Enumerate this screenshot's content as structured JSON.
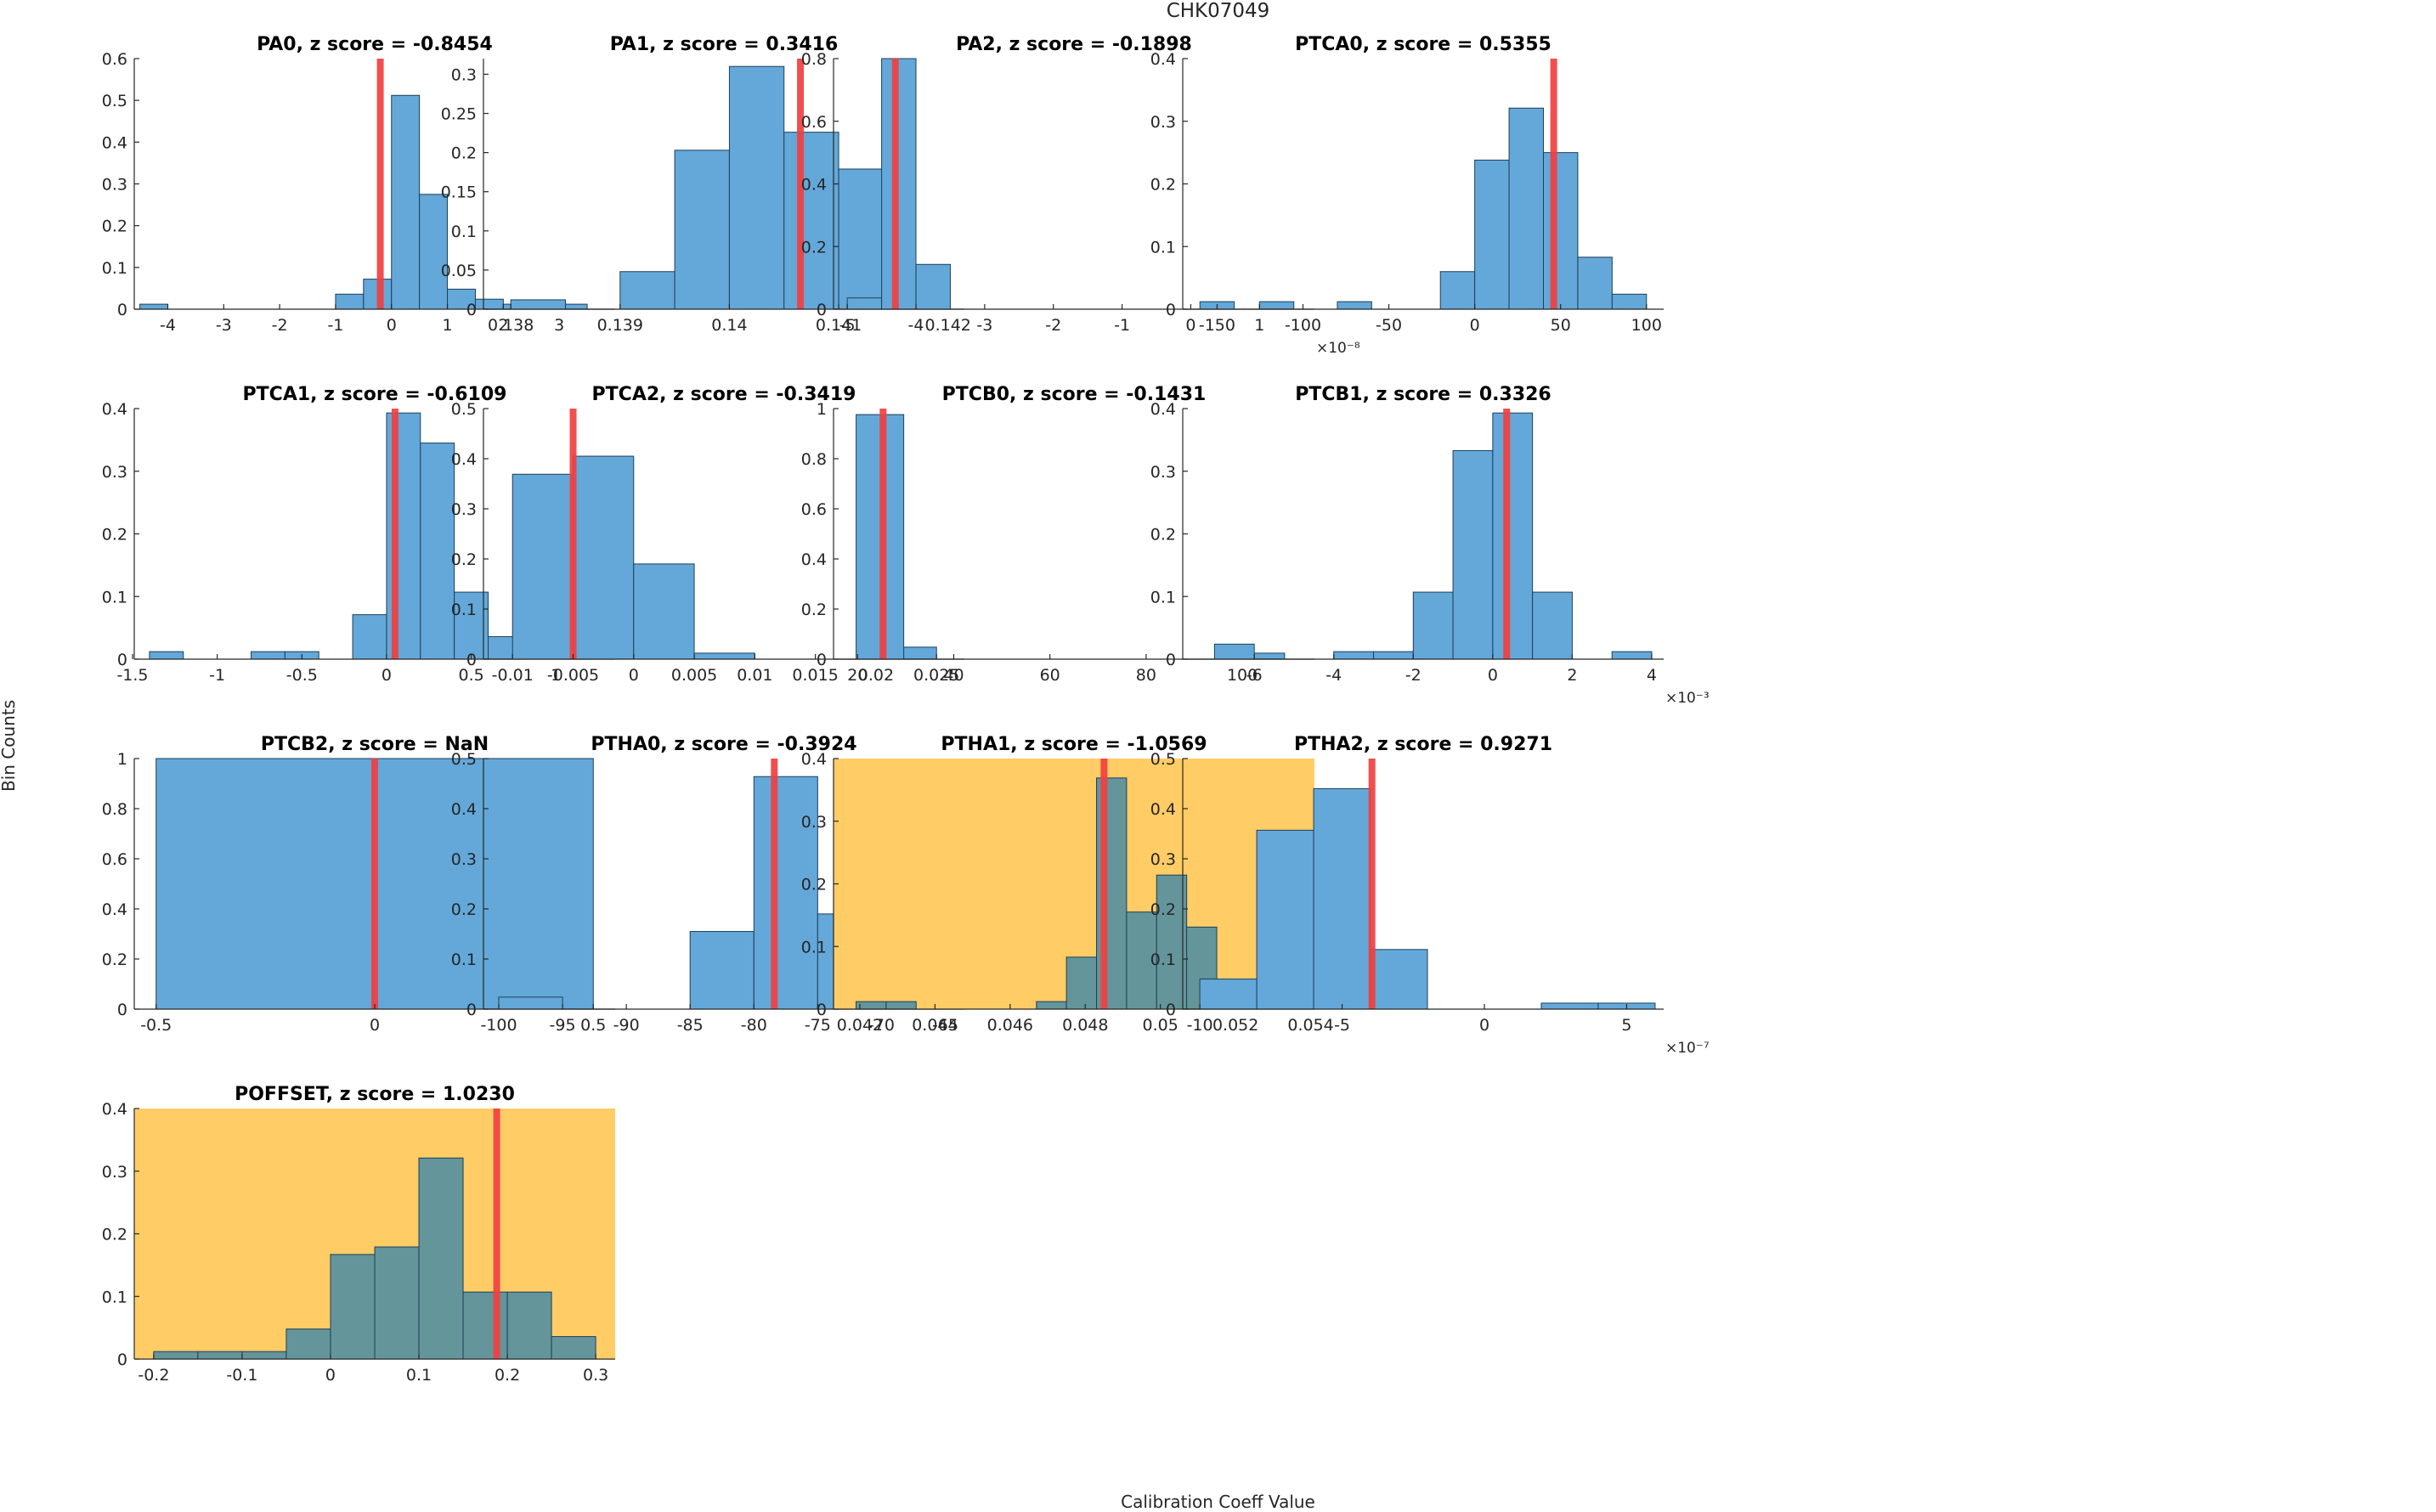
{
  "figure": {
    "title": "CHK07049",
    "xlabel": "Calibration Coeff Value",
    "ylabel": "Bin Counts"
  },
  "colors": {
    "bar": "#63a8d9",
    "bar_edge": "#1f3f57",
    "highlight_bg": "#ffcc66",
    "highlight_bar": "#63959a",
    "marker": "#f04040",
    "axis": "#262626"
  },
  "chart_data": [
    {
      "type": "bar",
      "title": "PA0, z score = -0.8454",
      "highlight": false,
      "xlim": [
        -4.6,
        4.0
      ],
      "ylim": [
        0,
        0.6
      ],
      "xticks": [
        -4,
        -3,
        -2,
        -1,
        0,
        1,
        2,
        3
      ],
      "xtick_labels": [
        "-4",
        "-3",
        "-2",
        "-1",
        "0",
        "1",
        "2",
        "3"
      ],
      "yticks": [
        0,
        0.1,
        0.2,
        0.3,
        0.4,
        0.5,
        0.6
      ],
      "ytick_labels": [
        "0",
        "0.1",
        "0.2",
        "0.3",
        "0.4",
        "0.5",
        "0.6"
      ],
      "bin_edges": [
        -4.5,
        -4.0,
        -3.5,
        -3.0,
        -2.5,
        -2.0,
        -1.5,
        -1.0,
        -0.5,
        0.0,
        0.5,
        1.0,
        1.5,
        2.0,
        2.5,
        3.0,
        3.5
      ],
      "values": [
        0.012,
        0,
        0,
        0,
        0,
        0,
        0,
        0.036,
        0.072,
        0.512,
        0.275,
        0.048,
        0.024,
        0.012,
        0,
        0.012
      ],
      "marker": -0.2,
      "exponent": ""
    },
    {
      "type": "bar",
      "title": "PA1, z score = 0.3416",
      "highlight": false,
      "xlim": [
        0.13775,
        0.14215
      ],
      "ylim": [
        0,
        0.32
      ],
      "xticks": [
        0.138,
        0.139,
        0.14,
        0.141,
        0.142
      ],
      "xtick_labels": [
        "0.138",
        "0.139",
        "0.14",
        "0.141",
        "0.142"
      ],
      "yticks": [
        0,
        0.05,
        0.1,
        0.15,
        0.2,
        0.25,
        0.3
      ],
      "ytick_labels": [
        "0",
        "0.05",
        "0.1",
        "0.15",
        "0.2",
        "0.25",
        "0.3"
      ],
      "bin_edges": [
        0.138,
        0.1385,
        0.139,
        0.1395,
        0.14,
        0.1405,
        0.141,
        0.1415,
        0.142
      ],
      "values": [
        0.012,
        0,
        0.048,
        0.203,
        0.31,
        0.226,
        0.179,
        0.024
      ],
      "marker": 0.14065,
      "exponent": ""
    },
    {
      "type": "bar",
      "title": "PA2, z score = -0.1898",
      "highlight": false,
      "xlim": [
        -5.2,
        1.8
      ],
      "ylim": [
        0,
        0.8
      ],
      "xticks": [
        -5,
        -4,
        -3,
        -2,
        -1,
        0,
        1
      ],
      "xtick_labels": [
        "-5",
        "-4",
        "-3",
        "-2",
        "-1",
        "0",
        "1"
      ],
      "yticks": [
        0,
        0.2,
        0.4,
        0.6,
        0.8
      ],
      "ytick_labels": [
        "0",
        "0.2",
        "0.4",
        "0.6",
        "0.8"
      ],
      "bin_edges": [
        -5.0,
        -4.5,
        -4.0,
        -3.5,
        -3.0,
        -2.5,
        -2.0,
        -1.5,
        -1.0,
        -0.5,
        0.0,
        0.5,
        1.0,
        1.5
      ],
      "values": [
        0.036,
        0.8,
        0.143,
        0,
        0,
        0,
        0,
        0,
        0,
        0,
        0,
        0,
        0.024
      ],
      "marker": -4.3,
      "exponent": "×10⁻⁸"
    },
    {
      "type": "bar",
      "title": "PTCA0, z score = 0.5355",
      "highlight": false,
      "xlim": [
        -170,
        110
      ],
      "ylim": [
        0,
        0.4
      ],
      "xticks": [
        -150,
        -100,
        -50,
        0,
        50,
        100
      ],
      "xtick_labels": [
        "-150",
        "-100",
        "-50",
        "0",
        "50",
        "100"
      ],
      "yticks": [
        0,
        0.1,
        0.2,
        0.3,
        0.4
      ],
      "ytick_labels": [
        "0",
        "0.1",
        "0.2",
        "0.3",
        "0.4"
      ],
      "bin_edges": [
        -160,
        -140,
        -120,
        -100,
        -80,
        -60,
        -40,
        -20,
        0,
        20,
        40,
        60,
        80,
        100
      ],
      "values": [
        0.012,
        0,
        0,
        0,
        0.012,
        0,
        0,
        0.06,
        0.238,
        0.321,
        0.25,
        0.083,
        0.024
      ],
      "marker": 46,
      "exponent": ""
    },
    {
      "type": "bar",
      "title": "PTCA1, z score = -0.6109",
      "highlight": false,
      "xlim": [
        -1.49,
        1.35
      ],
      "ylim": [
        0,
        0.4
      ],
      "xticks": [
        -1.5,
        -1,
        -0.5,
        0,
        0.5,
        1
      ],
      "xtick_labels": [
        "-1.5",
        "-1",
        "-0.5",
        "0",
        "0.5",
        "1"
      ],
      "yticks": [
        0,
        0.1,
        0.2,
        0.3,
        0.4
      ],
      "ytick_labels": [
        "0",
        "0.1",
        "0.2",
        "0.3",
        "0.4"
      ],
      "bin_edges": [
        -1.4,
        -1.2,
        -1.0,
        -0.8,
        -0.6,
        -0.4,
        -0.2,
        0.0,
        0.2,
        0.4,
        0.6,
        0.8,
        1.0,
        1.2
      ],
      "values": [
        0.012,
        0,
        0,
        0.012,
        0.012,
        0,
        0.071,
        0.393,
        0.345,
        0.107,
        0.036,
        0,
        0.012
      ],
      "marker": 0.05,
      "exponent": ""
    },
    {
      "type": "bar",
      "title": "PTCA2, z score = -0.3419",
      "highlight": false,
      "xlim": [
        -0.0124,
        0.0273
      ],
      "ylim": [
        0,
        0.5
      ],
      "xticks": [
        -0.01,
        -0.005,
        0,
        0.005,
        0.01,
        0.015,
        0.02,
        0.025
      ],
      "xtick_labels": [
        "-0.01",
        "-0.005",
        "0",
        "0.005",
        "0.01",
        "0.015",
        "0.02",
        "0.025"
      ],
      "yticks": [
        0,
        0.1,
        0.2,
        0.3,
        0.4,
        0.5
      ],
      "ytick_labels": [
        "0",
        "0.1",
        "0.2",
        "0.3",
        "0.4",
        "0.5"
      ],
      "bin_edges": [
        -0.01,
        -0.005,
        0.0,
        0.005,
        0.01,
        0.015,
        0.02,
        0.025
      ],
      "values": [
        0.369,
        0.405,
        0.19,
        0.012,
        0,
        0,
        0.024
      ],
      "marker": -0.005,
      "exponent": ""
    },
    {
      "type": "bar",
      "title": "PTCB0, z score = -0.1431",
      "highlight": false,
      "xlim": [
        15,
        115
      ],
      "ylim": [
        0,
        1
      ],
      "xticks": [
        20,
        40,
        60,
        80,
        100
      ],
      "xtick_labels": [
        "20",
        "40",
        "60",
        "80",
        "100"
      ],
      "yticks": [
        0,
        0.2,
        0.4,
        0.6,
        0.8,
        1
      ],
      "ytick_labels": [
        "0",
        "0.2",
        "0.4",
        "0.6",
        "0.8",
        "1"
      ],
      "bin_edges": [
        19.7,
        29.6,
        39.5,
        49.4,
        59.3,
        69.2,
        79.1,
        89.0,
        98.9,
        108.8
      ],
      "values": [
        0.976,
        0,
        0,
        0,
        0,
        0,
        0,
        0,
        0.024
      ],
      "marker": 25.3,
      "exponent": ""
    },
    {
      "type": "bar",
      "title": "PTCB1, z score = 0.3326",
      "highlight": false,
      "xlim": [
        -7.8,
        4.3
      ],
      "ylim": [
        0,
        0.4
      ],
      "xticks": [
        -6,
        -4,
        -2,
        0,
        2,
        4
      ],
      "xtick_labels": [
        "-6",
        "-4",
        "-2",
        "0",
        "2",
        "4"
      ],
      "yticks": [
        0,
        0.1,
        0.2,
        0.3,
        0.4
      ],
      "ytick_labels": [
        "0",
        "0.1",
        "0.2",
        "0.3",
        "0.4"
      ],
      "bin_edges": [
        -7.0,
        -6.0,
        -5.0,
        -4.0,
        -3.0,
        -2.0,
        -1.0,
        0.0,
        1.0,
        2.0,
        3.0,
        4.0
      ],
      "values": [
        0.024,
        0,
        0,
        0.012,
        0.012,
        0.107,
        0.333,
        0.393,
        0.107,
        0,
        0.012
      ],
      "marker": 0.35,
      "exponent": "×10⁻³"
    },
    {
      "type": "bar",
      "title": "PTCB2, z score = NaN",
      "highlight": false,
      "xlim": [
        -0.55,
        0.55
      ],
      "ylim": [
        0,
        1
      ],
      "xticks": [
        -0.5,
        0,
        0.5
      ],
      "xtick_labels": [
        "-0.5",
        "0",
        "0.5"
      ],
      "yticks": [
        0,
        0.2,
        0.4,
        0.6,
        0.8,
        1
      ],
      "ytick_labels": [
        "0",
        "0.2",
        "0.4",
        "0.6",
        "0.8",
        "1"
      ],
      "bin_edges": [
        -0.5,
        0.5
      ],
      "values": [
        1
      ],
      "marker": 0,
      "exponent": ""
    },
    {
      "type": "bar",
      "title": "PTHA0, z score = -0.3924",
      "highlight": false,
      "xlim": [
        -101.2,
        -63.5
      ],
      "ylim": [
        0,
        0.5
      ],
      "xticks": [
        -100,
        -95,
        -90,
        -85,
        -80,
        -75,
        -70,
        -65
      ],
      "xtick_labels": [
        "-100",
        "-95",
        "-90",
        "-85",
        "-80",
        "-75",
        "-70",
        "-65"
      ],
      "yticks": [
        0,
        0.1,
        0.2,
        0.3,
        0.4,
        0.5
      ],
      "ytick_labels": [
        "0",
        "0.1",
        "0.2",
        "0.3",
        "0.4",
        "0.5"
      ],
      "bin_edges": [
        -100,
        -95,
        -90,
        -85,
        -80,
        -75,
        -70,
        -65
      ],
      "values": [
        0.024,
        0,
        0,
        0.155,
        0.464,
        0.19,
        0.167
      ],
      "marker": -78.4,
      "exponent": ""
    },
    {
      "type": "bar",
      "title": "PTHA1, z score = -1.0569",
      "highlight": true,
      "xlim": [
        0.0413,
        0.0541
      ],
      "ylim": [
        0,
        0.4
      ],
      "xticks": [
        0.042,
        0.044,
        0.046,
        0.048,
        0.05,
        0.052,
        0.054
      ],
      "xtick_labels": [
        "0.042",
        "0.044",
        "0.046",
        "0.048",
        "0.05",
        "0.052",
        "0.054"
      ],
      "yticks": [
        0,
        0.1,
        0.2,
        0.3,
        0.4
      ],
      "ytick_labels": [
        "0",
        "0.1",
        "0.2",
        "0.3",
        "0.4"
      ],
      "bin_edges": [
        0.0419,
        0.0427,
        0.0435,
        0.0443,
        0.0451,
        0.0459,
        0.0467,
        0.0475,
        0.0483,
        0.0491,
        0.0499,
        0.0507,
        0.0515,
        0.0523,
        0.0531
      ],
      "values": [
        0.012,
        0.012,
        0,
        0,
        0,
        0,
        0.012,
        0.083,
        0.369,
        0.155,
        0.214,
        0.131,
        0.012,
        0
      ],
      "marker": 0.0485,
      "exponent": ""
    },
    {
      "type": "bar",
      "title": "PTHA2, z score = 0.9271",
      "highlight": false,
      "xlim": [
        -10.6,
        6.3
      ],
      "ylim": [
        0,
        0.5
      ],
      "xticks": [
        -10,
        -5,
        0,
        5
      ],
      "xtick_labels": [
        "-10",
        "-5",
        "0",
        "5"
      ],
      "yticks": [
        0,
        0.1,
        0.2,
        0.3,
        0.4,
        0.5
      ],
      "ytick_labels": [
        "0",
        "0.1",
        "0.2",
        "0.3",
        "0.4",
        "0.5"
      ],
      "bin_edges": [
        -10.0,
        -8.0,
        -6.0,
        -4.0,
        -2.0,
        0.0,
        2.0,
        4.0,
        6.0
      ],
      "values": [
        0.06,
        0.357,
        0.44,
        0.119,
        0,
        0,
        0.012,
        0.012
      ],
      "marker": -3.95,
      "exponent": "×10⁻⁷"
    },
    {
      "type": "bar",
      "title": "POFFSET, z score = 1.0230",
      "highlight": true,
      "xlim": [
        -0.222,
        0.322
      ],
      "ylim": [
        0,
        0.4
      ],
      "xticks": [
        -0.2,
        -0.1,
        0,
        0.1,
        0.2,
        0.3
      ],
      "xtick_labels": [
        "-0.2",
        "-0.1",
        "0",
        "0.1",
        "0.2",
        "0.3"
      ],
      "yticks": [
        0,
        0.1,
        0.2,
        0.3,
        0.4
      ],
      "ytick_labels": [
        "0",
        "0.1",
        "0.2",
        "0.3",
        "0.4"
      ],
      "bin_edges": [
        -0.2,
        -0.15,
        -0.1,
        -0.05,
        0.0,
        0.05,
        0.1,
        0.15,
        0.2,
        0.25,
        0.3
      ],
      "values": [
        0.012,
        0.012,
        0.012,
        0.048,
        0.167,
        0.179,
        0.321,
        0.107,
        0.107,
        0.036
      ],
      "marker": 0.188,
      "exponent": ""
    }
  ]
}
